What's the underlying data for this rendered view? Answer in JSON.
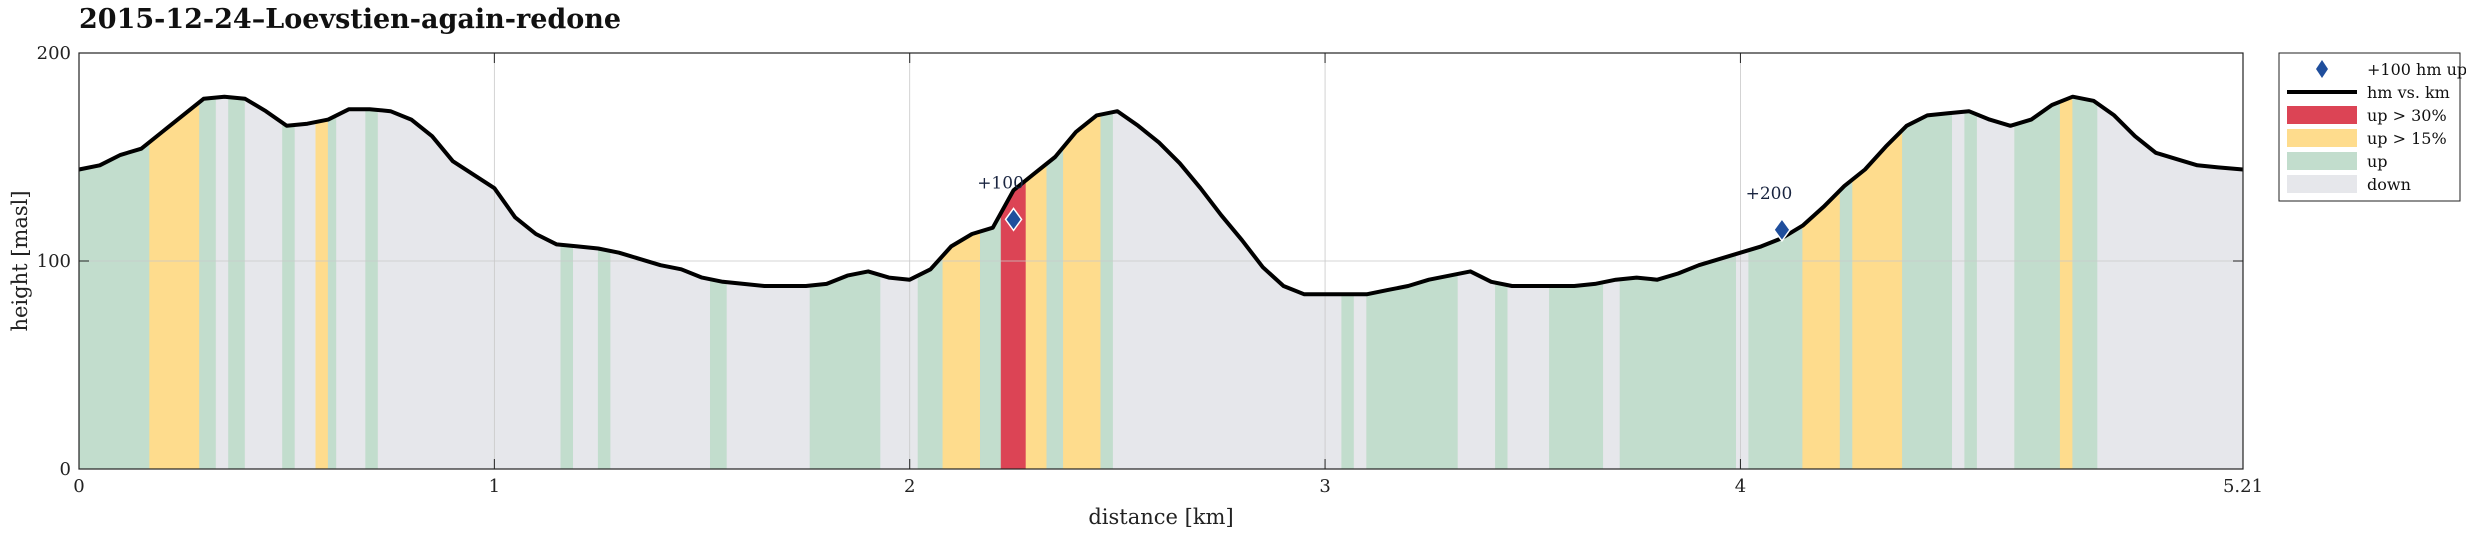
{
  "chart_data": {
    "type": "area",
    "title": "2015-12-24–Loevstien-again-redone",
    "xlabel": "distance [km]",
    "ylabel": "height [masl]",
    "xlim": [
      0,
      5.21
    ],
    "ylim": [
      0,
      200
    ],
    "x_ticks": [
      0,
      1,
      2,
      3,
      4,
      5.21
    ],
    "x_tick_labels": [
      "0",
      "1",
      "2",
      "3",
      "4",
      "5.21"
    ],
    "y_ticks": [
      0,
      100,
      200
    ],
    "y_tick_labels": [
      "0",
      "100",
      "200"
    ],
    "grid": true,
    "legend_position": "outside-right-top",
    "colors": {
      "up30": "#dc4455",
      "up15": "#fedc8d",
      "up": "#c2ddcd",
      "down": "#e6e7eb",
      "line": "#000000",
      "marker": "#1f4e9c"
    },
    "series": [
      {
        "name": "hm vs. km",
        "x": [
          0,
          0.05,
          0.1,
          0.15,
          0.2,
          0.25,
          0.3,
          0.35,
          0.4,
          0.45,
          0.5,
          0.55,
          0.6,
          0.65,
          0.7,
          0.75,
          0.8,
          0.85,
          0.9,
          1.0,
          1.05,
          1.1,
          1.15,
          1.2,
          1.25,
          1.3,
          1.35,
          1.4,
          1.45,
          1.5,
          1.55,
          1.6,
          1.65,
          1.7,
          1.75,
          1.8,
          1.85,
          1.9,
          1.95,
          2.0,
          2.05,
          2.1,
          2.15,
          2.2,
          2.25,
          2.3,
          2.35,
          2.4,
          2.45,
          2.5,
          2.55,
          2.6,
          2.65,
          2.7,
          2.75,
          2.8,
          2.85,
          2.9,
          2.95,
          3.0,
          3.05,
          3.1,
          3.15,
          3.2,
          3.25,
          3.3,
          3.35,
          3.4,
          3.45,
          3.5,
          3.55,
          3.6,
          3.65,
          3.7,
          3.75,
          3.8,
          3.85,
          3.9,
          3.95,
          4.0,
          4.05,
          4.1,
          4.15,
          4.2,
          4.25,
          4.3,
          4.35,
          4.4,
          4.45,
          4.5,
          4.55,
          4.6,
          4.65,
          4.7,
          4.75,
          4.8,
          4.85,
          4.9,
          4.95,
          5.0,
          5.05,
          5.1,
          5.15,
          5.21
        ],
        "y": [
          144,
          146,
          151,
          154,
          162,
          170,
          178,
          179,
          178,
          172,
          165,
          166,
          168,
          173,
          173,
          172,
          168,
          160,
          148,
          135,
          121,
          113,
          108,
          107,
          106,
          104,
          101,
          98,
          96,
          92,
          90,
          89,
          88,
          88,
          88,
          89,
          93,
          95,
          92,
          91,
          96,
          107,
          113,
          116,
          134,
          142,
          150,
          162,
          170,
          172,
          165,
          157,
          147,
          135,
          122,
          110,
          97,
          88,
          84,
          84,
          84,
          84,
          86,
          88,
          91,
          93,
          95,
          90,
          88,
          88,
          88,
          88,
          89,
          91,
          92,
          91,
          94,
          98,
          101,
          104,
          107,
          111,
          117,
          126,
          136,
          144,
          155,
          165,
          170,
          171,
          172,
          168,
          165,
          168,
          175,
          179,
          177,
          170,
          160,
          152,
          149,
          146,
          145,
          144
        ]
      }
    ],
    "gradient_bands": [
      {
        "x0": 0.0,
        "x1": 0.17,
        "class": "up"
      },
      {
        "x0": 0.17,
        "x1": 0.29,
        "class": "up > 15%"
      },
      {
        "x0": 0.29,
        "x1": 0.33,
        "class": "up"
      },
      {
        "x0": 0.33,
        "x1": 0.36,
        "class": "down"
      },
      {
        "x0": 0.36,
        "x1": 0.4,
        "class": "up"
      },
      {
        "x0": 0.4,
        "x1": 0.49,
        "class": "down"
      },
      {
        "x0": 0.49,
        "x1": 0.52,
        "class": "up"
      },
      {
        "x0": 0.52,
        "x1": 0.57,
        "class": "down"
      },
      {
        "x0": 0.57,
        "x1": 0.6,
        "class": "up > 15%"
      },
      {
        "x0": 0.6,
        "x1": 0.62,
        "class": "up"
      },
      {
        "x0": 0.62,
        "x1": 0.69,
        "class": "down"
      },
      {
        "x0": 0.69,
        "x1": 0.72,
        "class": "up"
      },
      {
        "x0": 0.72,
        "x1": 1.16,
        "class": "down"
      },
      {
        "x0": 1.16,
        "x1": 1.19,
        "class": "up"
      },
      {
        "x0": 1.19,
        "x1": 1.25,
        "class": "down"
      },
      {
        "x0": 1.25,
        "x1": 1.28,
        "class": "up"
      },
      {
        "x0": 1.28,
        "x1": 1.52,
        "class": "down"
      },
      {
        "x0": 1.52,
        "x1": 1.56,
        "class": "up"
      },
      {
        "x0": 1.56,
        "x1": 1.76,
        "class": "down"
      },
      {
        "x0": 1.76,
        "x1": 1.93,
        "class": "up"
      },
      {
        "x0": 1.93,
        "x1": 2.02,
        "class": "down"
      },
      {
        "x0": 2.02,
        "x1": 2.08,
        "class": "up"
      },
      {
        "x0": 2.08,
        "x1": 2.17,
        "class": "up > 15%"
      },
      {
        "x0": 2.17,
        "x1": 2.22,
        "class": "up"
      },
      {
        "x0": 2.22,
        "x1": 2.28,
        "class": "up > 30%"
      },
      {
        "x0": 2.28,
        "x1": 2.33,
        "class": "up > 15%"
      },
      {
        "x0": 2.33,
        "x1": 2.37,
        "class": "up"
      },
      {
        "x0": 2.37,
        "x1": 2.46,
        "class": "up > 15%"
      },
      {
        "x0": 2.46,
        "x1": 2.49,
        "class": "up"
      },
      {
        "x0": 2.49,
        "x1": 3.04,
        "class": "down"
      },
      {
        "x0": 3.04,
        "x1": 3.07,
        "class": "up"
      },
      {
        "x0": 3.07,
        "x1": 3.1,
        "class": "down"
      },
      {
        "x0": 3.1,
        "x1": 3.32,
        "class": "up"
      },
      {
        "x0": 3.32,
        "x1": 3.41,
        "class": "down"
      },
      {
        "x0": 3.41,
        "x1": 3.44,
        "class": "up"
      },
      {
        "x0": 3.44,
        "x1": 3.54,
        "class": "down"
      },
      {
        "x0": 3.54,
        "x1": 3.67,
        "class": "up"
      },
      {
        "x0": 3.67,
        "x1": 3.71,
        "class": "down"
      },
      {
        "x0": 3.71,
        "x1": 3.99,
        "class": "up"
      },
      {
        "x0": 3.99,
        "x1": 4.02,
        "class": "down"
      },
      {
        "x0": 4.02,
        "x1": 4.15,
        "class": "up"
      },
      {
        "x0": 4.15,
        "x1": 4.24,
        "class": "up > 15%"
      },
      {
        "x0": 4.24,
        "x1": 4.27,
        "class": "up"
      },
      {
        "x0": 4.27,
        "x1": 4.39,
        "class": "up > 15%"
      },
      {
        "x0": 4.39,
        "x1": 4.51,
        "class": "up"
      },
      {
        "x0": 4.51,
        "x1": 4.54,
        "class": "down"
      },
      {
        "x0": 4.54,
        "x1": 4.57,
        "class": "up"
      },
      {
        "x0": 4.57,
        "x1": 4.66,
        "class": "down"
      },
      {
        "x0": 4.66,
        "x1": 4.77,
        "class": "up"
      },
      {
        "x0": 4.77,
        "x1": 4.8,
        "class": "up > 15%"
      },
      {
        "x0": 4.8,
        "x1": 4.86,
        "class": "up"
      },
      {
        "x0": 4.86,
        "x1": 5.21,
        "class": "down"
      }
    ],
    "markers": [
      {
        "label": "+100",
        "x": 2.25,
        "y": 120
      },
      {
        "label": "+200",
        "x": 4.1,
        "y": 115
      }
    ],
    "legend": [
      {
        "label": "+100 hm up",
        "kind": "marker"
      },
      {
        "label": "hm vs. km",
        "kind": "line"
      },
      {
        "label": "up > 30%",
        "kind": "patch",
        "class": "up > 30%"
      },
      {
        "label": "up > 15%",
        "kind": "patch",
        "class": "up > 15%"
      },
      {
        "label": "up",
        "kind": "patch",
        "class": "up"
      },
      {
        "label": "down",
        "kind": "patch",
        "class": "down"
      }
    ]
  }
}
